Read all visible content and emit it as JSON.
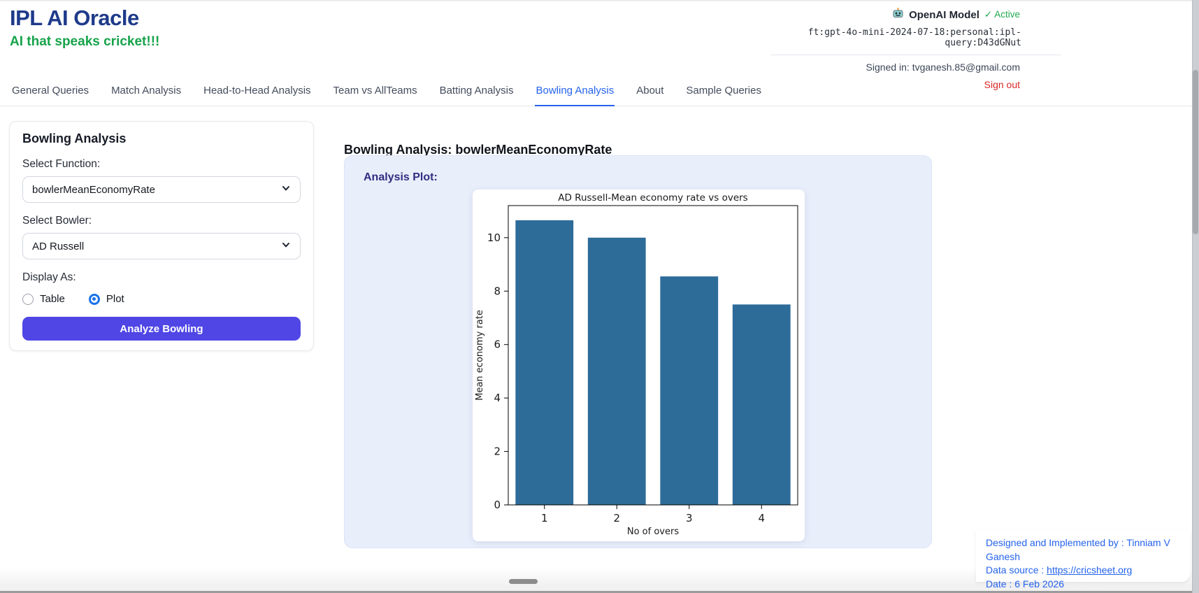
{
  "header": {
    "title": "IPL AI Oracle",
    "subtitle": "AI that speaks cricket!!!",
    "robot_icon": "robot-emoji",
    "model_label": "OpenAI Model",
    "model_status": "✓ Active",
    "model_id": "ft:gpt-4o-mini-2024-07-18:personal:ipl-query:D43dGNut",
    "signed_in": "Signed in: tvganesh.85@gmail.com",
    "sign_out": "Sign out"
  },
  "nav": {
    "tabs": [
      {
        "label": "General Queries",
        "active": false
      },
      {
        "label": "Match Analysis",
        "active": false
      },
      {
        "label": "Head-to-Head Analysis",
        "active": false
      },
      {
        "label": "Team vs AllTeams",
        "active": false
      },
      {
        "label": "Batting Analysis",
        "active": false
      },
      {
        "label": "Bowling Analysis",
        "active": true
      },
      {
        "label": "About",
        "active": false
      },
      {
        "label": "Sample Queries",
        "active": false
      }
    ]
  },
  "sidebar": {
    "heading": "Bowling Analysis",
    "function_label": "Select Function:",
    "function_value": "bowlerMeanEconomyRate",
    "bowler_label": "Select Bowler:",
    "bowler_value": "AD Russell",
    "display_label": "Display As:",
    "radio_table": "Table",
    "radio_plot": "Plot",
    "selected_display": "Plot",
    "analyze_button": "Analyze Bowling"
  },
  "main": {
    "heading": "Bowling Analysis: bowlerMeanEconomyRate",
    "plot_label": "Analysis Plot:"
  },
  "chart_data": {
    "type": "bar",
    "title": "AD Russell-Mean economy rate vs overs",
    "categories": [
      "1",
      "2",
      "3",
      "4"
    ],
    "values": [
      10.65,
      10.0,
      8.55,
      7.5
    ],
    "xlabel": "No of overs",
    "ylabel": "Mean economy rate",
    "ylim": [
      0,
      11.2
    ],
    "yticks": [
      0,
      2,
      4,
      6,
      8,
      10
    ],
    "bar_color": "#2d6b99",
    "grid": false,
    "legend_position": "none"
  },
  "footer": {
    "line1": "Designed and Implemented by : Tinniam V Ganesh",
    "line2_prefix": "Data source : ",
    "line2_link": "https://cricsheet.org",
    "line3": "Date : 6 Feb 2026"
  },
  "colors": {
    "brand_navy": "#1e3a8a",
    "brand_green": "#16a34a",
    "active_green": "#22a94f",
    "signout_red": "#dc2626",
    "tab_active_blue": "#2563eb",
    "button_indigo": "#4f46e5",
    "radio_blue": "#1a73e8",
    "panel_lavender": "#e9eefb",
    "plot_label_indigo": "#312e81",
    "footer_blue": "#2563eb",
    "bar_blue": "#2d6b99"
  }
}
